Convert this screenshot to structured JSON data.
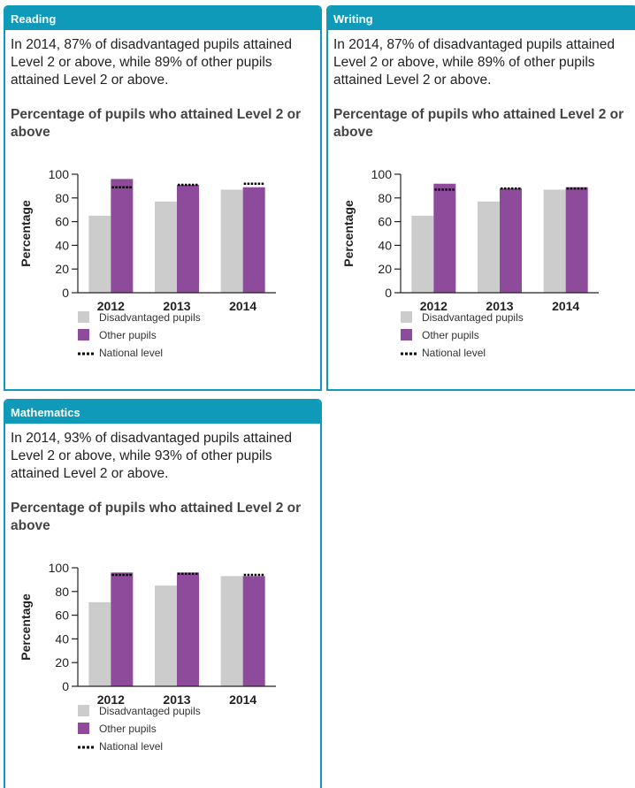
{
  "legend": {
    "disadvantaged": "Disadvantaged pupils",
    "other": "Other pupils",
    "national": "National level"
  },
  "colors": {
    "header": "#0e9ab8",
    "disadvantaged": "#cccccc",
    "other": "#8e4b9b",
    "national": "#000000"
  },
  "panels": [
    {
      "title": "Reading",
      "summary": "In 2014, 87% of disadvantaged pupils attained Level 2 or above, while 89% of other pupils attained Level 2 or above."
    },
    {
      "title": "Writing",
      "summary": "In 2014, 87% of disadvantaged pupils attained Level 2 or above, while 89% of other pupils attained Level 2 or above."
    },
    {
      "title": "Mathematics",
      "summary": "In 2014, 93% of disadvantaged pupils attained Level 2 or above, while 93% of other pupils attained Level 2 or above."
    }
  ],
  "chart_data": [
    {
      "type": "bar",
      "title": "Percentage of pupils who attained Level 2 or above",
      "ylabel": "Percentage",
      "ylim": [
        0,
        100
      ],
      "yticks": [
        0,
        20,
        40,
        60,
        80,
        100
      ],
      "categories": [
        "2012",
        "2013",
        "2014"
      ],
      "series": [
        {
          "name": "Disadvantaged pupils",
          "values": [
            65,
            77,
            87
          ]
        },
        {
          "name": "Other pupils",
          "values": [
            96,
            91,
            89
          ]
        }
      ],
      "national_level": [
        89,
        91,
        92
      ]
    },
    {
      "type": "bar",
      "title": "Percentage of pupils who attained Level 2 or above",
      "ylabel": "Percentage",
      "ylim": [
        0,
        100
      ],
      "yticks": [
        0,
        20,
        40,
        60,
        80,
        100
      ],
      "categories": [
        "2012",
        "2013",
        "2014"
      ],
      "series": [
        {
          "name": "Disadvantaged pupils",
          "values": [
            65,
            77,
            87
          ]
        },
        {
          "name": "Other pupils",
          "values": [
            92,
            88,
            89
          ]
        }
      ],
      "national_level": [
        87,
        88,
        88
      ]
    },
    {
      "type": "bar",
      "title": "Percentage of pupils who attained Level 2 or above",
      "ylabel": "Percentage",
      "ylim": [
        0,
        100
      ],
      "yticks": [
        0,
        20,
        40,
        60,
        80,
        100
      ],
      "categories": [
        "2012",
        "2013",
        "2014"
      ],
      "series": [
        {
          "name": "Disadvantaged pupils",
          "values": [
            71,
            85,
            93
          ]
        },
        {
          "name": "Other pupils",
          "values": [
            96,
            96,
            93
          ]
        }
      ],
      "national_level": [
        94,
        95,
        94
      ]
    }
  ]
}
